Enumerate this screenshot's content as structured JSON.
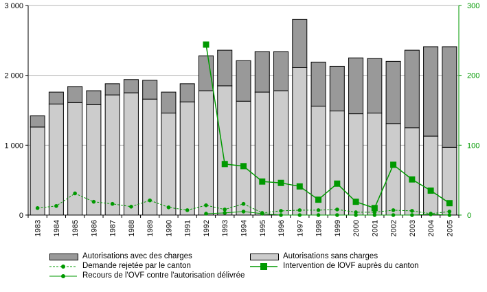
{
  "chart_data": {
    "type": "bar",
    "categories": [
      "1983",
      "1984",
      "1985",
      "1986",
      "1987",
      "1988",
      "1989",
      "1990",
      "1991",
      "1992",
      "1993",
      "1994",
      "1995",
      "1996",
      "1997",
      "1998",
      "1999",
      "2000",
      "2001",
      "2002",
      "2003",
      "2004",
      "2005"
    ],
    "series": [
      {
        "name": "Autorisations sans charges",
        "kind": "bar-stack-bottom",
        "axis": "left",
        "color": "#cccccc",
        "values": [
          1260,
          1590,
          1610,
          1580,
          1720,
          1750,
          1660,
          1460,
          1620,
          1780,
          1850,
          1630,
          1760,
          1780,
          2110,
          1560,
          1490,
          1450,
          1460,
          1310,
          1250,
          1130,
          970
        ]
      },
      {
        "name": "Autorisations avec des charges",
        "kind": "bar-stack-top",
        "axis": "left",
        "color": "#999999",
        "values": [
          160,
          170,
          230,
          200,
          160,
          190,
          270,
          300,
          260,
          500,
          510,
          580,
          580,
          560,
          690,
          630,
          640,
          800,
          780,
          890,
          1110,
          1280,
          1440
        ]
      },
      {
        "name": "Demande rejetée par le canton",
        "kind": "line-dashed",
        "axis": "right",
        "color": "#009900",
        "values": [
          10,
          13,
          31,
          19,
          16,
          12,
          21,
          11,
          7,
          14,
          8,
          16,
          3,
          6,
          7,
          7,
          8,
          4,
          4,
          7,
          6,
          2,
          5
        ]
      },
      {
        "name": "Intervention de lOVF auprès du canton",
        "kind": "line-square",
        "axis": "right",
        "color": "#009900",
        "values": [
          null,
          null,
          null,
          null,
          null,
          null,
          null,
          null,
          null,
          244,
          73,
          70,
          48,
          46,
          41,
          22,
          45,
          19,
          10,
          72,
          51,
          35,
          17
        ]
      },
      {
        "name": "Recours de l'OVF contre l'autorisation délivrée",
        "kind": "line-dot",
        "axis": "right",
        "color": "#009900",
        "values": [
          null,
          null,
          null,
          null,
          null,
          null,
          null,
          null,
          null,
          2,
          3,
          5,
          2,
          0,
          0,
          0,
          0,
          0,
          0,
          0,
          0,
          1,
          0
        ]
      }
    ],
    "ylim": [
      0,
      3000
    ],
    "yticks": [
      0,
      1000,
      2000,
      3000
    ],
    "ytick_labels": [
      "0",
      "1 000",
      "2 000",
      "3 000"
    ],
    "y2lim": [
      0,
      300
    ],
    "y2ticks": [
      0,
      100,
      200,
      300
    ],
    "y2tick_labels": [
      "0",
      "100",
      "200",
      "300"
    ],
    "y2_color": "#009900",
    "plot_background": "#ffffff",
    "grid": "horizontal",
    "grid_color": "#b3b3b3",
    "legend_position": "bottom"
  }
}
